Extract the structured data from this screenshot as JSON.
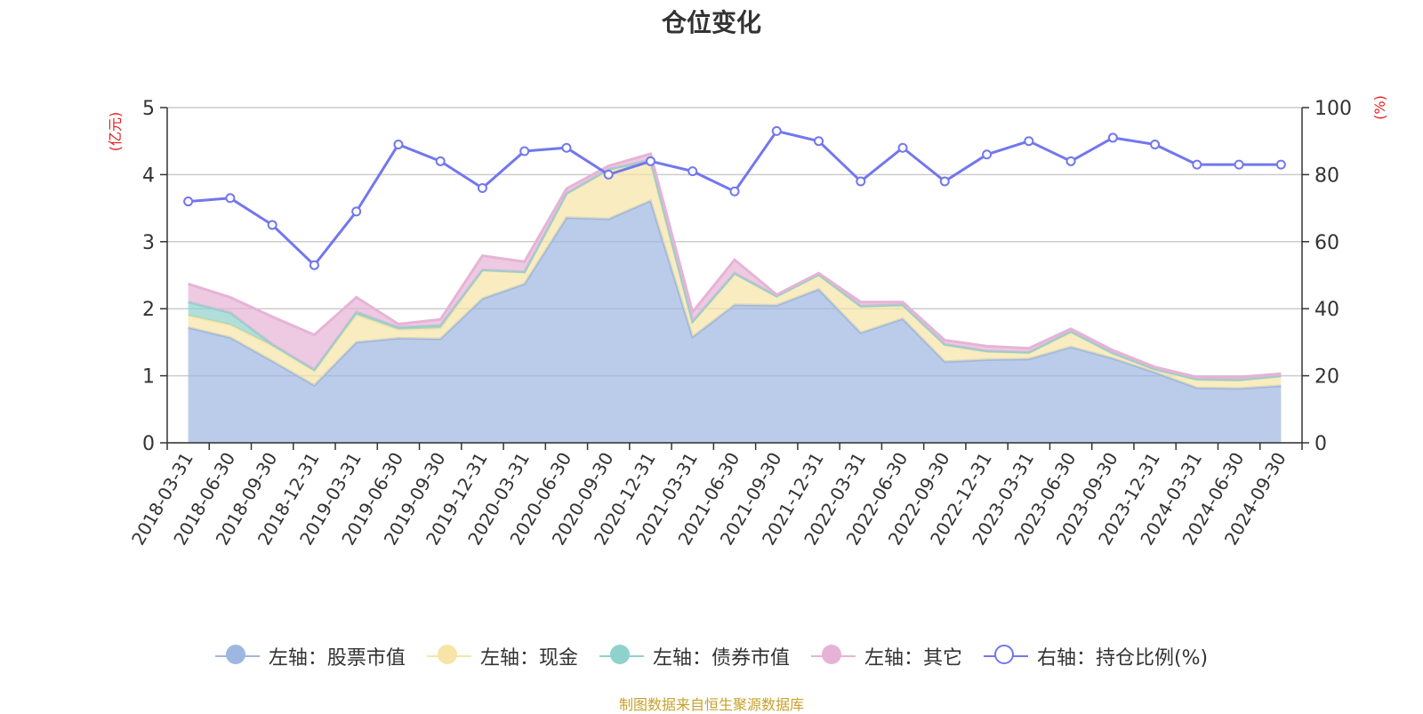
{
  "chart_data": {
    "type": "area",
    "title": "仓位变化",
    "left_axis_label": "(亿元)",
    "right_axis_label": "(%)",
    "left_ylim": [
      0,
      5
    ],
    "left_yticks": [
      0,
      1,
      2,
      3,
      4,
      5
    ],
    "right_ylim": [
      0,
      100
    ],
    "right_yticks": [
      0,
      20,
      40,
      60,
      80,
      100
    ],
    "categories": [
      "2018-03-31",
      "2018-06-30",
      "2018-09-30",
      "2018-12-31",
      "2019-03-31",
      "2019-06-30",
      "2019-09-30",
      "2019-12-31",
      "2020-03-31",
      "2020-06-30",
      "2020-09-30",
      "2020-12-31",
      "2021-03-31",
      "2021-06-30",
      "2021-09-30",
      "2021-12-31",
      "2022-03-31",
      "2022-06-30",
      "2022-09-30",
      "2022-12-31",
      "2023-03-31",
      "2023-06-30",
      "2023-09-30",
      "2023-12-31",
      "2024-03-31",
      "2024-06-30",
      "2024-09-30"
    ],
    "stack_series": [
      {
        "name": "左轴：股票市值",
        "color": "#9db7e0",
        "values": [
          1.72,
          1.57,
          1.22,
          0.86,
          1.5,
          1.56,
          1.55,
          2.15,
          2.37,
          3.36,
          3.34,
          3.61,
          1.58,
          2.06,
          2.05,
          2.29,
          1.64,
          1.85,
          1.21,
          1.24,
          1.25,
          1.43,
          1.26,
          1.05,
          0.82,
          0.81,
          0.85
        ]
      },
      {
        "name": "左轴：现金",
        "color": "#f7e4a6",
        "values": [
          0.18,
          0.19,
          0.23,
          0.22,
          0.41,
          0.13,
          0.16,
          0.42,
          0.17,
          0.35,
          0.73,
          0.56,
          0.22,
          0.46,
          0.13,
          0.21,
          0.39,
          0.2,
          0.25,
          0.12,
          0.09,
          0.22,
          0.07,
          0.04,
          0.12,
          0.12,
          0.14
        ]
      },
      {
        "name": "左轴：债券市值",
        "color": "#8fd2cc",
        "values": [
          0.2,
          0.18,
          0.02,
          0.01,
          0.04,
          0.03,
          0.04,
          0.01,
          0.01,
          0.01,
          0.01,
          0.05,
          0.01,
          0.01,
          0.01,
          0.01,
          0.01,
          0.01,
          0.01,
          0.01,
          0.01,
          0.01,
          0.01,
          0.01,
          0.01,
          0.01,
          0.01
        ]
      },
      {
        "name": "左轴：其它",
        "color": "#e6b3d6",
        "values": [
          0.27,
          0.23,
          0.41,
          0.52,
          0.22,
          0.05,
          0.09,
          0.21,
          0.15,
          0.07,
          0.05,
          0.09,
          0.14,
          0.2,
          0.02,
          0.02,
          0.06,
          0.04,
          0.06,
          0.07,
          0.06,
          0.04,
          0.04,
          0.03,
          0.03,
          0.04,
          0.03
        ]
      }
    ],
    "line_series": {
      "name": "右轴：持仓比例(%)",
      "color": "#7277ee",
      "values": [
        72,
        73,
        65,
        53,
        69,
        89,
        84,
        76,
        87,
        88,
        80,
        84,
        81,
        75,
        93,
        90,
        78,
        88,
        78,
        86,
        90,
        84,
        91,
        89,
        83,
        83,
        83
      ]
    },
    "grid": true,
    "legend_position": "bottom"
  },
  "source_text": "制图数据来自恒生聚源数据库"
}
